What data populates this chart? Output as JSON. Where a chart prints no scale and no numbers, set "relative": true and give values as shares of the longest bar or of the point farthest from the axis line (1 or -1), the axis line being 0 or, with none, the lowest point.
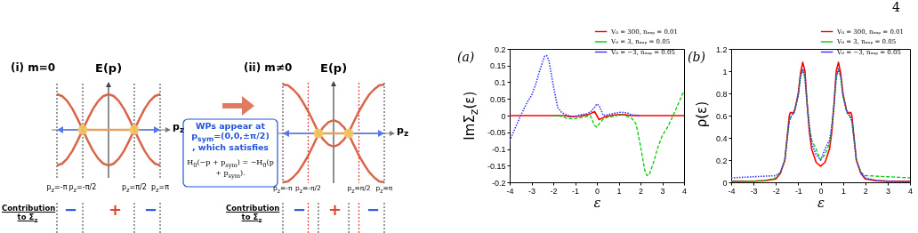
{
  "chart_data": [
    {
      "type": "line",
      "relative": true,
      "title": "(i) m=0",
      "ylabel": "E(p)",
      "xlabel": "p$_{z}$",
      "categories": [
        "p$_{z}$=-π",
        null,
        null,
        null,
        null,
        "p$_{z}$=-π/2",
        null,
        null,
        null,
        null,
        null,
        null,
        null,
        null,
        null,
        "p$_{z}$=π/2",
        null,
        null,
        null,
        null,
        "p$_{z}$=π"
      ],
      "ref_lines": [
        {
          "axis": "x",
          "value": "p$_{z}$=-π",
          "color": "#555555",
          "line_style": "dotted"
        },
        {
          "axis": "x",
          "value": "p$_{z}$=-π/2",
          "color": "#555555",
          "line_style": "dotted"
        },
        {
          "axis": "x",
          "value": "p$_{z}$=π/2",
          "color": "#555555",
          "line_style": "dotted"
        },
        {
          "axis": "x",
          "value": "p$_{z}$=π",
          "color": "#555555",
          "line_style": "dotted"
        }
      ],
      "series": [
        {
          "color": "#d9654a",
          "values": [
            -1,
            -0.95,
            -0.81,
            -0.59,
            -0.31,
            0,
            0.31,
            0.59,
            0.81,
            0.95,
            1,
            0.95,
            0.81,
            0.59,
            0.31,
            0,
            -0.31,
            -0.59,
            -0.81,
            -0.95,
            -1
          ]
        },
        {
          "color": "#d9654a",
          "values": [
            1,
            0.95,
            0.81,
            0.59,
            0.31,
            0,
            -0.31,
            -0.59,
            -0.81,
            -0.95,
            -1,
            -0.95,
            -0.81,
            -0.59,
            -0.31,
            0,
            0.31,
            0.59,
            0.81,
            0.95,
            1
          ]
        },
        {
          "color": "#e8a060",
          "values": [
            null,
            null,
            null,
            null,
            null,
            0,
            0,
            0,
            0,
            0,
            0,
            0,
            0,
            0,
            0,
            0,
            null,
            null,
            null,
            null,
            null
          ]
        },
        {
          "type": "scatter",
          "color": "#f3c860",
          "values": [
            null,
            null,
            null,
            null,
            null,
            0,
            null,
            null,
            null,
            null,
            null,
            null,
            null,
            null,
            null,
            0,
            null,
            null,
            null,
            null,
            null
          ]
        }
      ],
      "annotations": [
        "Contribution\nto Σ$_{z}$",
        "−",
        "+",
        "−"
      ]
    },
    {
      "type": "other",
      "annotations": [
        "WPs appear at\np$_{sym}$=(0,0,±π/2)\n, which satisfies",
        "H$_{0}$(−p + p$_{sym}$) = −H$_{0}$(p + p$_{sym}$)."
      ]
    },
    {
      "type": "line",
      "relative": true,
      "title": "(ii) m≠0",
      "ylabel": "E(p)",
      "xlabel": "p$_{z}$",
      "categories": [
        "p$_{z}$=-π",
        null,
        null,
        null,
        null,
        "p$_{z}$=-π/2",
        null,
        null,
        null,
        null,
        null,
        null,
        null,
        null,
        null,
        "p$_{z}$=π/2",
        null,
        null,
        null,
        null,
        "p$_{z}$=π"
      ],
      "ref_lines": [
        {
          "axis": "x",
          "value": "p$_{z}$=-π",
          "color": "#555555",
          "line_style": "dotted"
        },
        {
          "axis": "x",
          "value": "p$_{z}$=-π/2",
          "color": "#ee3333",
          "line_style": "dotted"
        },
        {
          "axis": "x",
          "value": "p$_{z}$=π/2",
          "color": "#ee3333",
          "line_style": "dotted"
        },
        {
          "axis": "x",
          "value": "p$_{z}$=π",
          "color": "#555555",
          "line_style": "dotted"
        }
      ],
      "series": [
        {
          "color": "#d9654a",
          "values": [
            -1,
            -0.98,
            -0.9,
            -0.79,
            -0.63,
            -0.45,
            -0.24,
            -0.02,
            0.13,
            0.23,
            0.27,
            0.23,
            0.13,
            -0.02,
            -0.24,
            -0.45,
            -0.63,
            -0.79,
            -0.9,
            -0.98,
            -1
          ]
        },
        {
          "color": "#d9654a",
          "values": [
            1,
            0.98,
            0.9,
            0.79,
            0.63,
            0.45,
            0.24,
            0.02,
            -0.13,
            -0.23,
            -0.27,
            -0.23,
            -0.13,
            0.02,
            0.24,
            0.45,
            0.63,
            0.79,
            0.9,
            0.98,
            1
          ]
        },
        {
          "color": "#e8a060",
          "values": [
            null,
            null,
            null,
            null,
            null,
            null,
            null,
            0,
            0,
            0,
            0,
            0,
            0,
            0,
            null,
            null,
            null,
            null,
            null,
            null,
            null
          ]
        },
        {
          "type": "scatter",
          "color": "#f3c860",
          "values": [
            null,
            null,
            null,
            null,
            null,
            null,
            null,
            0,
            null,
            null,
            null,
            null,
            null,
            0,
            null,
            null,
            null,
            null,
            null,
            null,
            null
          ]
        }
      ],
      "annotations": [
        "Contribution\nto Σ$_{z}$",
        "−",
        "+",
        "−"
      ]
    },
    {
      "type": "line",
      "title": "(a)",
      "xlabel": "ε",
      "ylabel": "ImΣ$_{z}$(ε)",
      "xlim": [
        -4,
        4
      ],
      "ylim": [
        -0.2,
        0.2
      ],
      "xticks": [
        -4,
        -3,
        -2,
        -1,
        0,
        1,
        2,
        3,
        4
      ],
      "yticks": [
        -0.2,
        -0.15,
        -0.1,
        -0.05,
        0,
        0.05,
        0.1,
        0.15,
        0.2
      ],
      "legend": "top right",
      "series": [
        {
          "name": "V₀ = 300, nᵢₘₚ = 0.01",
          "color": "#ff0000",
          "line_style": "solid",
          "x": [
            -4,
            -2,
            -1.5,
            -1.2,
            -0.8,
            -0.4,
            -0.1,
            0.1,
            0.4,
            0.8,
            1.2,
            1.6,
            2,
            4
          ],
          "values": [
            0,
            0,
            0,
            -0.003,
            -0.002,
            0.003,
            0.012,
            -0.012,
            -0.003,
            0.002,
            0.003,
            0,
            0,
            0
          ]
        },
        {
          "name": "V₀ = 3, nᵢₘₚ = 0.05",
          "color": "#00cc00",
          "line_style": "dashed",
          "x": [
            -2,
            -1.6,
            -1.4,
            -1.1,
            -0.8,
            -0.5,
            -0.3,
            -0.1,
            0,
            0.1,
            0.3,
            0.5,
            0.8,
            1,
            1.2,
            1.4,
            1.6,
            1.8,
            2,
            2.2,
            2.3,
            2.4,
            2.6,
            2.8,
            3,
            3.2,
            3.5,
            3.8,
            4
          ],
          "values": [
            0,
            -0.002,
            -0.008,
            -0.01,
            -0.007,
            -0.003,
            0,
            -0.03,
            -0.035,
            -0.025,
            -0.01,
            -0.005,
            -0.002,
            0.002,
            0.002,
            -0.003,
            -0.008,
            -0.025,
            -0.09,
            -0.165,
            -0.18,
            -0.178,
            -0.14,
            -0.095,
            -0.06,
            -0.04,
            0,
            0.045,
            0.075
          ]
        },
        {
          "name": "V₀ = −3, nᵢₘₚ = 0.05",
          "color": "#3333ff",
          "line_style": "dotted",
          "x": [
            -4,
            -3.8,
            -3.5,
            -3.2,
            -3,
            -2.8,
            -2.6,
            -2.4,
            -2.3,
            -2.2,
            -2,
            -1.8,
            -1.6,
            -1.4,
            -1.2,
            -1,
            -0.8,
            -0.5,
            -0.3,
            -0.1,
            0,
            0.1,
            0.3,
            0.5,
            0.8,
            1.1,
            1.4,
            1.6,
            2
          ],
          "values": [
            -0.075,
            -0.045,
            0,
            0.04,
            0.06,
            0.095,
            0.14,
            0.178,
            0.18,
            0.165,
            0.09,
            0.025,
            0.008,
            0.003,
            -0.002,
            -0.002,
            0.002,
            0.005,
            0.01,
            0.025,
            0.035,
            0.03,
            0,
            0.003,
            0.007,
            0.01,
            0.008,
            0.002,
            0
          ]
        }
      ]
    },
    {
      "type": "line",
      "title": "(b)",
      "xlabel": "ε",
      "ylabel": "ρ(ε)",
      "xlim": [
        -4,
        4
      ],
      "ylim": [
        0,
        1.2
      ],
      "xticks": [
        -4,
        -3,
        -2,
        -1,
        0,
        1,
        2,
        3,
        4
      ],
      "yticks": [
        0,
        0.2,
        0.4,
        0.6,
        0.8,
        1,
        1.2
      ],
      "legend": "top right",
      "annotations": [
        "4"
      ],
      "series": [
        {
          "name": "V₀ = 300, nᵢₘₚ = 0.01",
          "color": "#ff0000",
          "line_style": "solid",
          "x": [
            -4,
            -3,
            -2.5,
            -2,
            -1.8,
            -1.6,
            -1.5,
            -1.4,
            -1.35,
            -1.25,
            -1.15,
            -1,
            -0.9,
            -0.8,
            -0.7,
            -0.6,
            -0.5,
            -0.4,
            -0.2,
            0,
            0.2,
            0.4,
            0.5,
            0.6,
            0.7,
            0.8,
            0.9,
            1,
            1.15,
            1.25,
            1.35,
            1.4,
            1.5,
            1.6,
            1.8,
            2,
            2.5,
            3,
            4
          ],
          "values": [
            0.01,
            0.01,
            0.015,
            0.03,
            0.08,
            0.2,
            0.4,
            0.6,
            0.63,
            0.62,
            0.65,
            0.8,
            0.98,
            1.08,
            1,
            0.7,
            0.45,
            0.3,
            0.18,
            0.145,
            0.18,
            0.3,
            0.45,
            0.7,
            1,
            1.08,
            0.98,
            0.8,
            0.65,
            0.62,
            0.63,
            0.6,
            0.4,
            0.2,
            0.08,
            0.03,
            0.015,
            0.01,
            0.01
          ]
        },
        {
          "name": "V₀ = 3, nᵢₘₚ = 0.05",
          "color": "#00cc00",
          "line_style": "dashed",
          "x": [
            -4,
            -3,
            -2.5,
            -2,
            -1.8,
            -1.6,
            -1.5,
            -1.4,
            -1.3,
            -1.2,
            -1,
            -0.9,
            -0.8,
            -0.7,
            -0.6,
            -0.5,
            -0.4,
            -0.2,
            0,
            0.2,
            0.4,
            0.5,
            0.6,
            0.7,
            0.8,
            0.9,
            1,
            1.2,
            1.3,
            1.4,
            1.5,
            1.6,
            1.8,
            2,
            2.5,
            3,
            3.5,
            4
          ],
          "values": [
            0.005,
            0.01,
            0.015,
            0.04,
            0.09,
            0.2,
            0.38,
            0.55,
            0.6,
            0.62,
            0.78,
            0.95,
            1.02,
            0.95,
            0.7,
            0.5,
            0.38,
            0.3,
            0.2,
            0.25,
            0.35,
            0.5,
            0.7,
            0.93,
            1.02,
            0.95,
            0.78,
            0.62,
            0.6,
            0.55,
            0.38,
            0.2,
            0.09,
            0.06,
            0.055,
            0.05,
            0.045,
            0.04
          ]
        },
        {
          "name": "V₀ = −3, nᵢₘₚ = 0.05",
          "color": "#3333ff",
          "line_style": "dotted",
          "x": [
            -4,
            -3.5,
            -3,
            -2.5,
            -2,
            -1.8,
            -1.6,
            -1.5,
            -1.4,
            -1.3,
            -1.2,
            -1,
            -0.9,
            -0.8,
            -0.7,
            -0.6,
            -0.5,
            -0.4,
            -0.2,
            0,
            0.2,
            0.4,
            0.5,
            0.6,
            0.7,
            0.8,
            0.9,
            1,
            1.2,
            1.3,
            1.4,
            1.5,
            1.6,
            1.8,
            2,
            2.5,
            3,
            4
          ],
          "values": [
            0.04,
            0.045,
            0.05,
            0.055,
            0.06,
            0.09,
            0.2,
            0.38,
            0.55,
            0.6,
            0.62,
            0.78,
            0.95,
            1.02,
            0.93,
            0.7,
            0.5,
            0.35,
            0.25,
            0.2,
            0.3,
            0.38,
            0.5,
            0.7,
            0.95,
            1.02,
            0.95,
            0.78,
            0.62,
            0.6,
            0.55,
            0.38,
            0.2,
            0.09,
            0.04,
            0.015,
            0.01,
            0.005
          ]
        }
      ]
    }
  ]
}
